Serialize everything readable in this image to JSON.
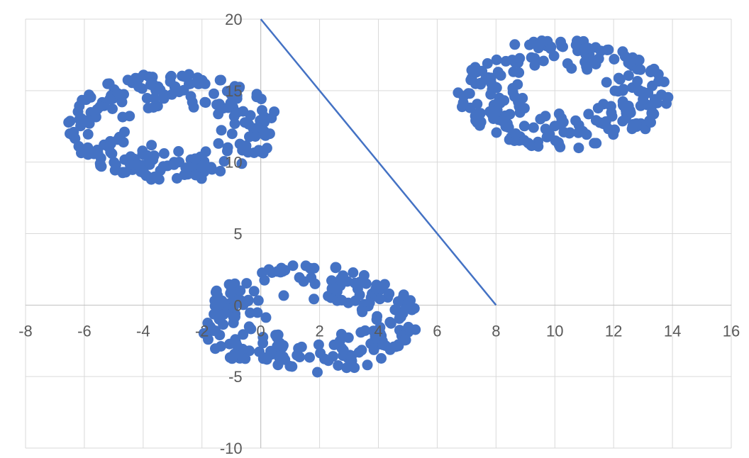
{
  "chart_data": {
    "type": "scatter",
    "title": "",
    "xlabel": "",
    "ylabel": "",
    "xlim": [
      -8,
      16
    ],
    "ylim": [
      -10,
      20
    ],
    "x_ticks": [
      -8,
      -6,
      -4,
      -2,
      0,
      2,
      4,
      6,
      8,
      10,
      12,
      14,
      16
    ],
    "y_ticks": [
      -10,
      -5,
      0,
      5,
      10,
      15,
      20
    ],
    "grid": true,
    "legend": "none",
    "marker_color": "#4472c4",
    "line_color": "#4472c4",
    "line": {
      "x": [
        0,
        8
      ],
      "y": [
        20,
        0
      ]
    },
    "clusters": [
      {
        "center": [
          -3,
          12.5
        ],
        "radius_x": 3.6,
        "radius_y": 3.8,
        "inner": 0.35,
        "count": 230
      },
      {
        "center": [
          10.3,
          14.8
        ],
        "radius_x": 3.6,
        "radius_y": 3.9,
        "inner": 0.35,
        "count": 230
      },
      {
        "center": [
          1.6,
          -1.0
        ],
        "radius_x": 3.8,
        "radius_y": 3.8,
        "inner": 0.35,
        "count": 230
      }
    ]
  }
}
